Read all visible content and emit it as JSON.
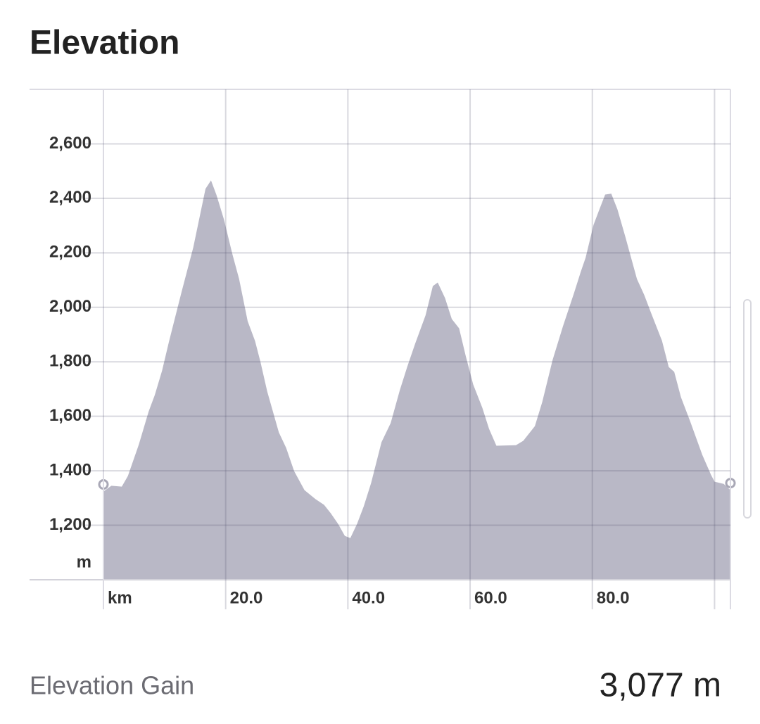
{
  "title": "Elevation",
  "chart_data": {
    "type": "area",
    "x_unit": "km",
    "y_unit": "m",
    "color": "#b9b8c6",
    "grid": true,
    "xlim": [
      0,
      102.6
    ],
    "ylim": [
      1000,
      2800
    ],
    "xticks": [
      {
        "value": 20,
        "label": "20.0"
      },
      {
        "value": 40,
        "label": "40.0"
      },
      {
        "value": 60,
        "label": "60.0"
      },
      {
        "value": 80,
        "label": "80.0"
      },
      {
        "value": 100,
        "label": null
      }
    ],
    "yticks": [
      {
        "value": 1200,
        "label": "1,200"
      },
      {
        "value": 1400,
        "label": "1,400"
      },
      {
        "value": 1600,
        "label": "1,600"
      },
      {
        "value": 1800,
        "label": "1,800"
      },
      {
        "value": 2000,
        "label": "2,000"
      },
      {
        "value": 2200,
        "label": "2,200"
      },
      {
        "value": 2400,
        "label": "2,400"
      },
      {
        "value": 2600,
        "label": "2,600"
      }
    ],
    "x": [
      0,
      1.3,
      3.0,
      4.0,
      5.8,
      7.4,
      8.4,
      9.6,
      10.7,
      12.8,
      14.7,
      16.7,
      17.6,
      18.5,
      19.7,
      21.1,
      22.2,
      23.6,
      24.8,
      25.7,
      26.8,
      28.7,
      29.9,
      31.2,
      32.9,
      34.7,
      36.1,
      37.2,
      38.4,
      39.5,
      40.4,
      41.5,
      42.6,
      43.8,
      45.5,
      47.0,
      48.5,
      49.7,
      51.0,
      52.7,
      53.9,
      54.7,
      55.9,
      57.0,
      58.2,
      59.3,
      60.5,
      62.0,
      63.1,
      64.3,
      67.5,
      68.7,
      70.6,
      71.8,
      73.5,
      75.2,
      77.0,
      78.1,
      78.9,
      80.2,
      81.2,
      82.1,
      83.1,
      84.1,
      85.4,
      87.3,
      88.5,
      89.6,
      91.4,
      92.5,
      93.4,
      94.5,
      96.0,
      98.0,
      99.4,
      100.0,
      101.5,
      102.6
    ],
    "values": [
      1324,
      1345,
      1342,
      1381,
      1497,
      1618,
      1678,
      1768,
      1872,
      2058,
      2220,
      2435,
      2466,
      2412,
      2324,
      2195,
      2104,
      1949,
      1877,
      1799,
      1691,
      1541,
      1484,
      1399,
      1329,
      1296,
      1275,
      1244,
      1205,
      1161,
      1153,
      1205,
      1270,
      1355,
      1505,
      1575,
      1696,
      1781,
      1866,
      1970,
      2078,
      2091,
      2034,
      1957,
      1923,
      1820,
      1717,
      1631,
      1554,
      1492,
      1494,
      1510,
      1564,
      1652,
      1807,
      1931,
      2052,
      2130,
      2182,
      2303,
      2362,
      2414,
      2417,
      2360,
      2259,
      2104,
      2045,
      1980,
      1877,
      1781,
      1763,
      1670,
      1582,
      1458,
      1386,
      1360,
      1352,
      1329
    ]
  },
  "summary": {
    "label": "Elevation Gain",
    "value": "3,077 m"
  }
}
